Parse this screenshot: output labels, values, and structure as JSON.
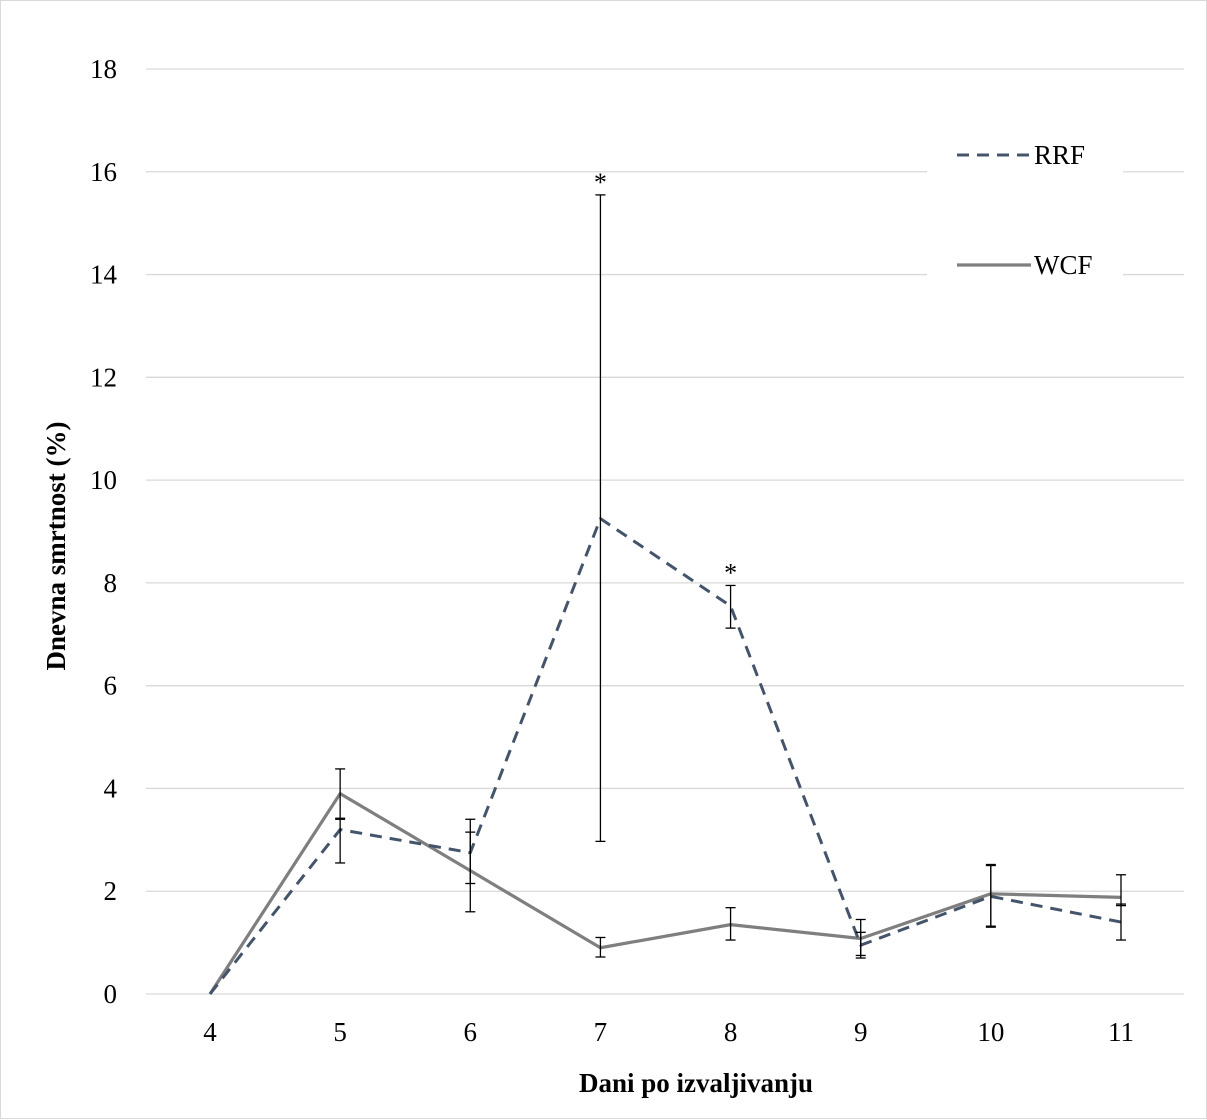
{
  "chart_data": {
    "type": "line",
    "xlabel": "Dani po izvaljivanju",
    "ylabel": "Dnevna smrtnost (%)",
    "x": [
      4,
      5,
      6,
      7,
      8,
      9,
      10,
      11
    ],
    "x_tick_labels": [
      "4",
      "5",
      "6",
      "7",
      "8",
      "9",
      "10",
      "11"
    ],
    "ylim": [
      0,
      18
    ],
    "y_ticks": [
      0,
      2,
      4,
      6,
      8,
      10,
      12,
      14,
      16,
      18
    ],
    "y_tick_labels": [
      "0",
      "2",
      "4",
      "6",
      "8",
      "10",
      "12",
      "14",
      "16",
      "18"
    ],
    "grid": true,
    "legend_position": "top-right",
    "series": [
      {
        "name": "RRF",
        "style": "dashed",
        "color": "#44546a",
        "values": [
          0,
          3.2,
          2.75,
          9.25,
          7.55,
          0.95,
          1.9,
          1.4
        ],
        "error_low": [
          0,
          2.55,
          1.6,
          2.97,
          7.12,
          0.7,
          1.3,
          1.05
        ],
        "error_high": [
          0,
          3.4,
          3.4,
          15.55,
          7.95,
          1.2,
          2.5,
          1.75
        ]
      },
      {
        "name": "WCF",
        "style": "solid",
        "color": "#7f7f7f",
        "values": [
          0,
          3.9,
          2.4,
          0.9,
          1.35,
          1.08,
          1.95,
          1.88
        ],
        "error_low": [
          0,
          3.42,
          2.15,
          0.72,
          1.05,
          0.75,
          1.32,
          1.72
        ],
        "error_high": [
          0,
          4.38,
          3.15,
          1.1,
          1.68,
          1.45,
          2.52,
          2.32
        ]
      }
    ],
    "annotations": [
      {
        "x": 7,
        "y": 15.55,
        "text": "*"
      },
      {
        "x": 8,
        "y": 7.95,
        "text": "*"
      }
    ]
  }
}
